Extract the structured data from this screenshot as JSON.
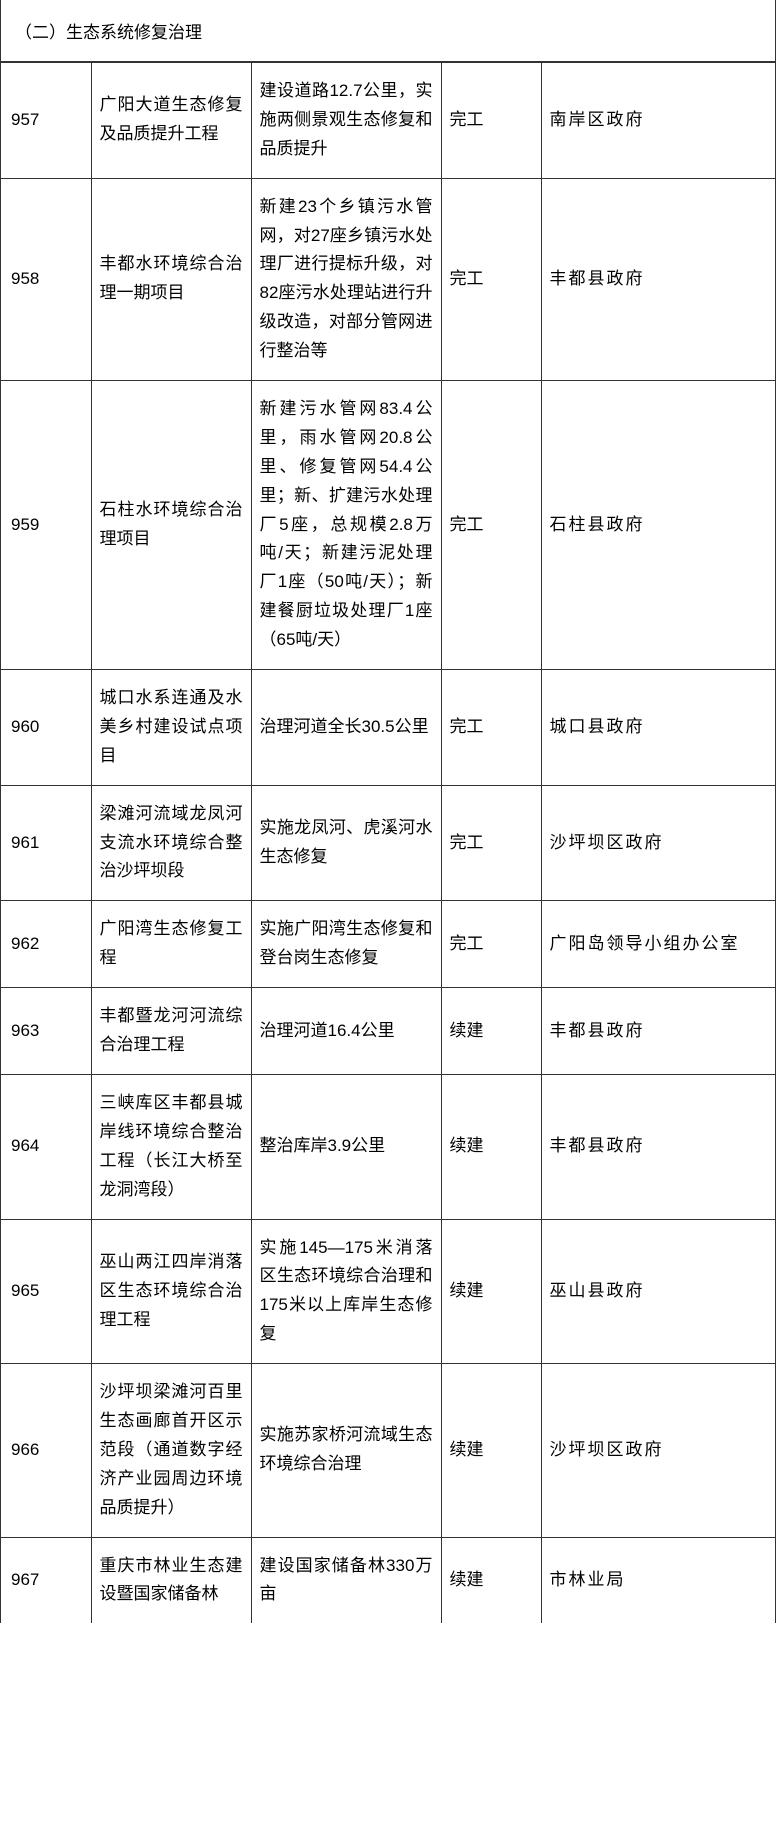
{
  "section_title": "（二）生态系统修复治理",
  "rows": [
    {
      "id": "957",
      "name": "广阳大道生态修复及品质提升工程",
      "desc": "建设道路12.7公里，实施两侧景观生态修复和品质提升",
      "status": "完工",
      "owner": "南岸区政府"
    },
    {
      "id": "958",
      "name": "丰都水环境综合治理一期项目",
      "desc": "新建23个乡镇污水管网，对27座乡镇污水处理厂进行提标升级，对82座污水处理站进行升级改造，对部分管网进行整治等",
      "status": "完工",
      "owner": "丰都县政府"
    },
    {
      "id": "959",
      "name": "石柱水环境综合治理项目",
      "desc": "新建污水管网83.4公里，雨水管网20.8公里、修复管网54.4公里；新、扩建污水处理厂5座，总规模2.8万吨/天；新建污泥处理厂1座（50吨/天）；新建餐厨垃圾处理厂1座（65吨/天）",
      "status": "完工",
      "owner": "石柱县政府"
    },
    {
      "id": "960",
      "name": "城口水系连通及水美乡村建设试点项目",
      "desc": "治理河道全长30.5公里",
      "status": "完工",
      "owner": "城口县政府"
    },
    {
      "id": "961",
      "name": "梁滩河流域龙凤河支流水环境综合整治沙坪坝段",
      "desc": "实施龙凤河、虎溪河水生态修复",
      "status": "完工",
      "owner": "沙坪坝区政府"
    },
    {
      "id": "962",
      "name": "广阳湾生态修复工程",
      "desc": "实施广阳湾生态修复和登台岗生态修复",
      "status": "完工",
      "owner": "广阳岛领导小组办公室"
    },
    {
      "id": "963",
      "name": "丰都暨龙河河流综合治理工程",
      "desc": "治理河道16.4公里",
      "status": "续建",
      "owner": "丰都县政府"
    },
    {
      "id": "964",
      "name": "三峡库区丰都县城岸线环境综合整治工程（长江大桥至龙洞湾段）",
      "desc": "整治库岸3.9公里",
      "status": "续建",
      "owner": "丰都县政府"
    },
    {
      "id": "965",
      "name": "巫山两江四岸消落区生态环境综合治理工程",
      "desc": "实施145—175米消落区生态环境综合治理和175米以上库岸生态修复",
      "status": "续建",
      "owner": "巫山县政府"
    },
    {
      "id": "966",
      "name": "沙坪坝梁滩河百里生态画廊首开区示范段（通道数字经济产业园周边环境品质提升）",
      "desc": "实施苏家桥河流域生态环境综合治理",
      "status": "续建",
      "owner": "沙坪坝区政府"
    },
    {
      "id": "967",
      "name": "重庆市林业生态建设暨国家储备林",
      "desc": "建设国家储备林330万亩",
      "status": "续建",
      "owner": "市林业局"
    }
  ]
}
